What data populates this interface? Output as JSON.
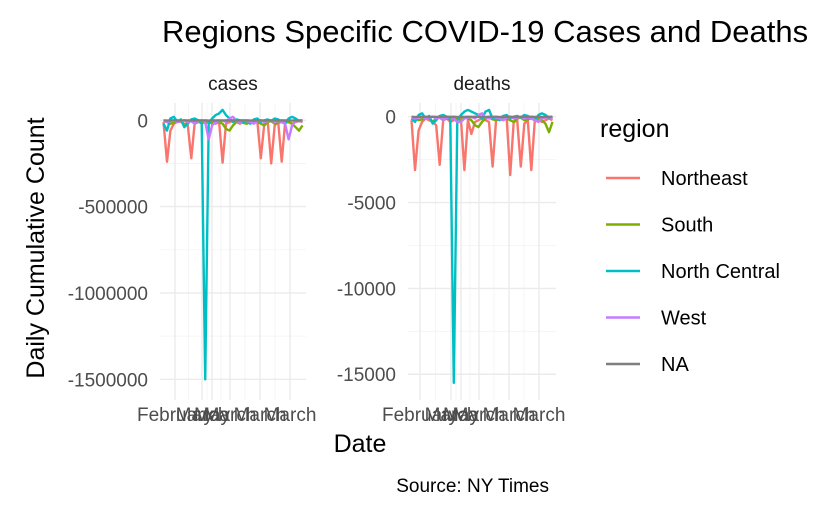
{
  "chart_data": {
    "type": "line",
    "title": "Regions Specific COVID-19 Cases and Deaths",
    "xlabel": "Date",
    "ylabel": "Daily Cumulative Count",
    "caption": "Source: NY Times",
    "legend_title": "region",
    "legend_position": "right",
    "grid": true,
    "series_colors": {
      "Northeast": "#F8766D",
      "South": "#7CAE00",
      "North Central": "#00BFC4",
      "West": "#C77CFF",
      "NA": "#7F7F7F"
    },
    "x_tick_labels": [
      "February",
      "March",
      "May",
      "March",
      "March",
      "March"
    ],
    "x_index": [
      0,
      1,
      2,
      3,
      4,
      5,
      6,
      7,
      8,
      9,
      10,
      11,
      12,
      13,
      14,
      15,
      16,
      17,
      18,
      19,
      20,
      21,
      22,
      23,
      24,
      25,
      26,
      27,
      28,
      29,
      30,
      31,
      32,
      33,
      34,
      35,
      36,
      37,
      38,
      39,
      40
    ],
    "x_range": [
      -1,
      41
    ],
    "panels": [
      {
        "strip": "cases",
        "ylim": [
          -1620000,
          100000
        ],
        "y_ticks": [
          0,
          -500000,
          -1000000,
          -1500000
        ],
        "y_tick_labels": [
          "0",
          "-500000",
          "-1000000",
          "-1500000"
        ],
        "series": [
          {
            "name": "Northeast",
            "values": [
              -10000,
              -240000,
              -60000,
              -20000,
              -5000,
              -10000,
              -20000,
              -30000,
              -220000,
              -10000,
              -5000,
              -20000,
              -10000,
              -15000,
              -5000,
              -20000,
              -10000,
              -245000,
              -20000,
              -10000,
              -5000,
              -10000,
              -20000,
              -5000,
              -10000,
              -15000,
              -10000,
              -5000,
              -220000,
              -20000,
              -10000,
              -250000,
              -30000,
              -10000,
              -240000,
              -15000,
              -10000,
              -20000,
              -10000,
              -5000,
              -10000
            ]
          },
          {
            "name": "South",
            "values": [
              -5000,
              -10000,
              -20000,
              -15000,
              -10000,
              -5000,
              -30000,
              -10000,
              -5000,
              -20000,
              -10000,
              -5000,
              -15000,
              -10000,
              -20000,
              -5000,
              -10000,
              -20000,
              -50000,
              -60000,
              -30000,
              -10000,
              -5000,
              -15000,
              -20000,
              -10000,
              -5000,
              -10000,
              -20000,
              -30000,
              -10000,
              -5000,
              -20000,
              -15000,
              -10000,
              -5000,
              -10000,
              -20000,
              -40000,
              -60000,
              -30000
            ]
          },
          {
            "name": "North Central",
            "values": [
              -20000,
              -60000,
              10000,
              20000,
              -10000,
              5000,
              -40000,
              -20000,
              5000,
              10000,
              0,
              -20000,
              -1500000,
              -20000,
              10000,
              30000,
              40000,
              60000,
              30000,
              10000,
              -10000,
              5000,
              0,
              -10000,
              -5000,
              -20000,
              5000,
              10000,
              -10000,
              0,
              5000,
              -5000,
              10000,
              5000,
              -10000,
              -20000,
              10000,
              20000,
              10000,
              -5000,
              0
            ]
          },
          {
            "name": "West",
            "values": [
              -5000,
              -10000,
              -5000,
              0,
              -10000,
              -5000,
              0,
              -10000,
              -5000,
              -20000,
              -5000,
              0,
              -10000,
              -110000,
              -30000,
              -10000,
              -5000,
              0,
              -10000,
              10000,
              20000,
              -5000,
              -10000,
              0,
              -5000,
              -10000,
              -20000,
              -5000,
              0,
              -10000,
              -5000,
              0,
              -10000,
              -5000,
              -10000,
              -20000,
              -110000,
              -30000,
              -5000,
              0,
              -10000
            ]
          },
          {
            "name": "NA",
            "values": [
              0,
              -2000,
              0,
              -1000,
              0,
              -2000,
              0,
              -1000,
              0,
              -2000,
              0,
              -1000,
              0,
              -2000,
              0,
              -1000,
              0,
              -2000,
              0,
              -1000,
              0,
              -2000,
              0,
              -1000,
              0,
              -2000,
              0,
              -1000,
              0,
              -2000,
              0,
              -1000,
              0,
              -2000,
              0,
              -1000,
              0,
              -2000,
              0,
              -1000,
              0
            ]
          }
        ]
      },
      {
        "strip": "deaths",
        "ylim": [
          -16500,
          800
        ],
        "y_ticks": [
          0,
          -5000,
          -10000,
          -15000
        ],
        "y_tick_labels": [
          "0",
          "-5000",
          "-10000",
          "-15000"
        ],
        "series": [
          {
            "name": "Northeast",
            "values": [
              -200,
              -3100,
              -800,
              -300,
              -100,
              -200,
              -300,
              -500,
              -2800,
              -200,
              -100,
              -300,
              -200,
              -150,
              -100,
              -3100,
              -200,
              -1000,
              -300,
              -200,
              -100,
              -200,
              -300,
              -2900,
              -200,
              -150,
              -200,
              -100,
              -3400,
              -300,
              -200,
              -2900,
              -400,
              -200,
              -3100,
              -150,
              -200,
              -300,
              -200,
              -100,
              -200
            ]
          },
          {
            "name": "South",
            "values": [
              -50,
              -100,
              -200,
              -150,
              -100,
              -50,
              -300,
              -100,
              -50,
              -200,
              -100,
              -50,
              -150,
              -100,
              -200,
              -50,
              -100,
              -200,
              -500,
              -600,
              -300,
              -100,
              -50,
              -150,
              -200,
              -100,
              -50,
              -100,
              -200,
              -300,
              -100,
              -50,
              -200,
              -150,
              -100,
              -50,
              -100,
              -200,
              -400,
              -900,
              -300
            ]
          },
          {
            "name": "North Central",
            "values": [
              -100,
              -300,
              100,
              200,
              -100,
              50,
              -400,
              -200,
              50,
              100,
              0,
              -200,
              -15500,
              -200,
              100,
              300,
              400,
              300,
              200,
              100,
              -100,
              300,
              400,
              -100,
              -50,
              -200,
              50,
              100,
              -100,
              0,
              50,
              -50,
              100,
              50,
              -100,
              -200,
              100,
              200,
              100,
              -50,
              0
            ]
          },
          {
            "name": "West",
            "values": [
              -50,
              -100,
              -50,
              0,
              -100,
              -50,
              0,
              -100,
              -50,
              -200,
              -50,
              0,
              -100,
              -300,
              -300,
              -100,
              -50,
              0,
              -100,
              100,
              200,
              -50,
              -100,
              0,
              -50,
              -100,
              -200,
              -50,
              0,
              -100,
              -50,
              0,
              -100,
              -50,
              -100,
              -200,
              -300,
              -100,
              -50,
              0,
              -100
            ]
          },
          {
            "name": "NA",
            "values": [
              0,
              -20,
              0,
              -10,
              0,
              -20,
              0,
              -10,
              0,
              -20,
              0,
              -10,
              0,
              -20,
              0,
              -10,
              0,
              -20,
              0,
              -10,
              0,
              -20,
              0,
              -10,
              0,
              -20,
              0,
              -10,
              0,
              -20,
              0,
              -10,
              0,
              -20,
              0,
              -10,
              0,
              -20,
              0,
              -10,
              0
            ]
          }
        ]
      }
    ]
  }
}
